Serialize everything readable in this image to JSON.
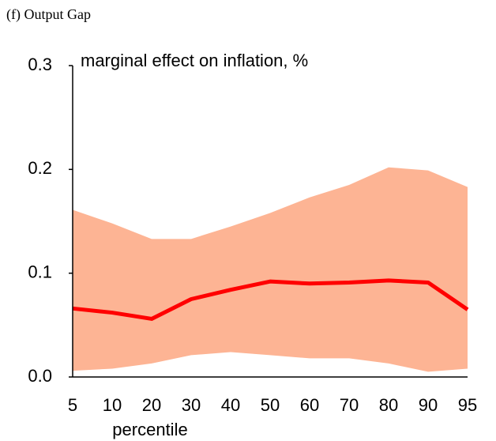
{
  "chart_data": {
    "type": "line",
    "title": "(f) Output Gap",
    "y_label": "marginal effect on inflation, %",
    "x_label": "percentile",
    "categories": [
      "5",
      "10",
      "20",
      "30",
      "40",
      "50",
      "60",
      "70",
      "80",
      "90",
      "95"
    ],
    "series": [
      {
        "color": "#ff0000",
        "band_color": "#fdb494",
        "values": [
          0.066,
          0.062,
          0.056,
          0.075,
          0.084,
          0.092,
          0.09,
          0.091,
          0.093,
          0.091,
          0.065
        ],
        "upper": [
          0.161,
          0.148,
          0.133,
          0.133,
          0.145,
          0.158,
          0.173,
          0.185,
          0.202,
          0.199,
          0.183
        ],
        "lower": [
          0.006,
          0.008,
          0.013,
          0.021,
          0.024,
          0.021,
          0.018,
          0.018,
          0.013,
          0.005,
          0.008
        ]
      }
    ],
    "ylim": [
      0,
      0.3
    ],
    "yticks": [
      {
        "value": 0,
        "label": "0.0"
      },
      0.1,
      0.2,
      0.3
    ]
  }
}
